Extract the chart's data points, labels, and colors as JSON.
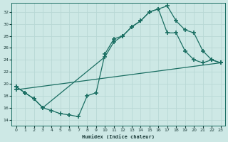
{
  "xlabel": "Humidex (Indice chaleur)",
  "bg_color": "#cde8e5",
  "line_color": "#1a6e62",
  "grid_color": "#b8d8d5",
  "xlim": [
    -0.5,
    23.5
  ],
  "ylim": [
    13.0,
    33.5
  ],
  "xticks": [
    0,
    1,
    2,
    3,
    4,
    5,
    6,
    7,
    8,
    9,
    10,
    11,
    12,
    13,
    14,
    15,
    16,
    17,
    18,
    19,
    20,
    21,
    22,
    23
  ],
  "yticks": [
    14,
    16,
    18,
    20,
    22,
    24,
    26,
    28,
    30,
    32
  ],
  "series1_x": [
    0,
    1,
    2,
    3,
    4,
    5,
    6,
    7,
    8,
    9,
    10,
    11,
    12,
    13,
    14,
    15,
    16,
    17,
    18,
    19,
    20,
    21,
    22,
    23
  ],
  "series1_y": [
    19.5,
    18.5,
    17.5,
    16.0,
    15.5,
    15.0,
    14.8,
    14.5,
    18.0,
    18.5,
    25.0,
    27.5,
    28.0,
    29.5,
    30.5,
    32.0,
    32.5,
    33.0,
    30.5,
    29.0,
    28.5,
    25.5,
    24.0,
    23.5
  ],
  "series2_x": [
    0,
    1,
    2,
    3,
    10,
    11,
    12,
    13,
    14,
    15,
    16,
    17,
    18,
    19,
    20,
    21,
    22,
    23
  ],
  "series2_y": [
    19.5,
    18.5,
    17.5,
    16.0,
    24.5,
    27.0,
    28.0,
    29.5,
    30.5,
    32.0,
    32.5,
    28.5,
    28.5,
    25.5,
    24.0,
    23.5,
    24.0,
    23.5
  ],
  "series3_x": [
    0,
    23
  ],
  "series3_y": [
    19.0,
    23.5
  ]
}
